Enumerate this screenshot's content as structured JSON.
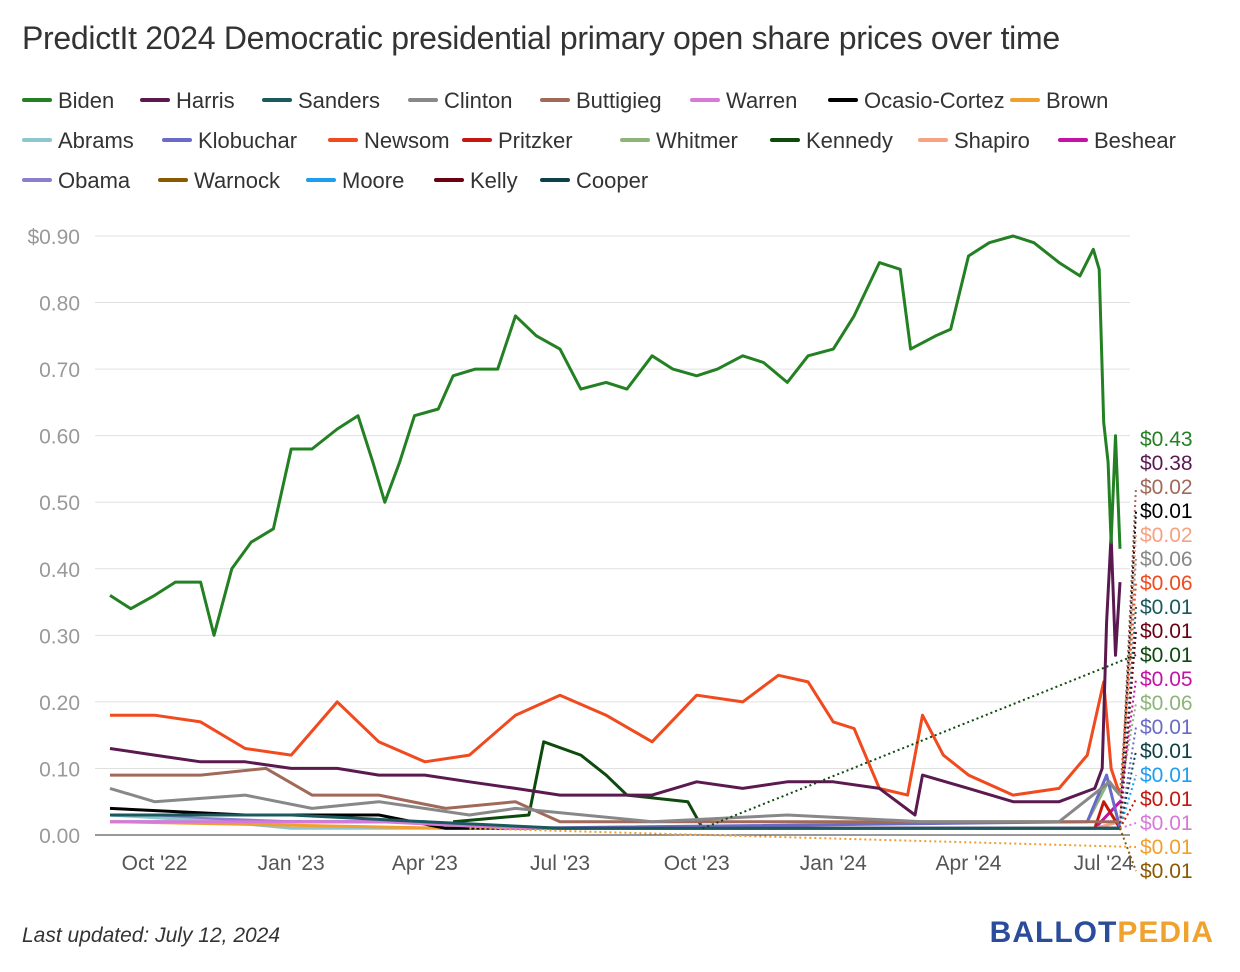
{
  "title": "PredictIt 2024 Democratic presidential primary open share prices over time",
  "footer": "Last updated: July 12, 2024",
  "logo": {
    "part1": "BALLOT",
    "part2": "PEDIA",
    "color1": "#2b4c9b",
    "color2": "#f0a22e"
  },
  "chart_data": {
    "type": "line",
    "title": "PredictIt 2024 Democratic presidential primary open share prices over time",
    "xlabel": "",
    "ylabel": "",
    "ylim": [
      0,
      0.9
    ],
    "yticks": [
      "$0.90",
      "0.80",
      "0.70",
      "0.60",
      "0.50",
      "0.40",
      "0.30",
      "0.20",
      "0.10",
      "0.00"
    ],
    "ytick_values": [
      0.9,
      0.8,
      0.7,
      0.6,
      0.5,
      0.4,
      0.3,
      0.2,
      0.1,
      0
    ],
    "xticks": [
      "Oct '22",
      "Jan '23",
      "Apr '23",
      "Jul '23",
      "Oct '23",
      "Jan '24",
      "Apr '24",
      "Jul '24"
    ],
    "xtick_dates": [
      "2022-10-01",
      "2023-01-01",
      "2023-04-01",
      "2023-07-01",
      "2023-10-01",
      "2024-01-01",
      "2024-04-01",
      "2024-07-01"
    ],
    "xlim": [
      "2022-09-01",
      "2024-07-12"
    ],
    "grid": true,
    "legend_position": "top",
    "series": [
      {
        "name": "Biden",
        "color": "#238023",
        "end_label": "$0.43",
        "points": [
          [
            "2022-09-01",
            0.36
          ],
          [
            "2022-09-15",
            0.34
          ],
          [
            "2022-10-01",
            0.36
          ],
          [
            "2022-10-15",
            0.38
          ],
          [
            "2022-11-01",
            0.38
          ],
          [
            "2022-11-10",
            0.3
          ],
          [
            "2022-11-22",
            0.4
          ],
          [
            "2022-12-05",
            0.44
          ],
          [
            "2022-12-20",
            0.46
          ],
          [
            "2023-01-01",
            0.58
          ],
          [
            "2023-01-15",
            0.58
          ],
          [
            "2023-02-01",
            0.61
          ],
          [
            "2023-02-15",
            0.63
          ],
          [
            "2023-02-25",
            0.56
          ],
          [
            "2023-03-05",
            0.5
          ],
          [
            "2023-03-15",
            0.56
          ],
          [
            "2023-03-25",
            0.63
          ],
          [
            "2023-04-10",
            0.64
          ],
          [
            "2023-04-20",
            0.69
          ],
          [
            "2023-05-05",
            0.7
          ],
          [
            "2023-05-20",
            0.7
          ],
          [
            "2023-06-01",
            0.78
          ],
          [
            "2023-06-15",
            0.75
          ],
          [
            "2023-07-01",
            0.73
          ],
          [
            "2023-07-15",
            0.67
          ],
          [
            "2023-08-01",
            0.68
          ],
          [
            "2023-08-15",
            0.67
          ],
          [
            "2023-09-01",
            0.72
          ],
          [
            "2023-09-15",
            0.7
          ],
          [
            "2023-10-01",
            0.69
          ],
          [
            "2023-10-15",
            0.7
          ],
          [
            "2023-11-01",
            0.72
          ],
          [
            "2023-11-15",
            0.71
          ],
          [
            "2023-12-01",
            0.68
          ],
          [
            "2023-12-15",
            0.72
          ],
          [
            "2024-01-01",
            0.73
          ],
          [
            "2024-01-15",
            0.78
          ],
          [
            "2024-02-01",
            0.86
          ],
          [
            "2024-02-15",
            0.85
          ],
          [
            "2024-02-22",
            0.73
          ],
          [
            "2024-03-10",
            0.75
          ],
          [
            "2024-03-20",
            0.76
          ],
          [
            "2024-04-01",
            0.87
          ],
          [
            "2024-04-15",
            0.89
          ],
          [
            "2024-05-01",
            0.9
          ],
          [
            "2024-05-15",
            0.89
          ],
          [
            "2024-06-01",
            0.86
          ],
          [
            "2024-06-15",
            0.84
          ],
          [
            "2024-06-24",
            0.88
          ],
          [
            "2024-06-28",
            0.85
          ],
          [
            "2024-07-01",
            0.62
          ],
          [
            "2024-07-04",
            0.56
          ],
          [
            "2024-07-06",
            0.44
          ],
          [
            "2024-07-09",
            0.6
          ],
          [
            "2024-07-12",
            0.43
          ]
        ]
      },
      {
        "name": "Harris",
        "color": "#5b1a4f",
        "end_label": "$0.38",
        "points": [
          [
            "2022-09-01",
            0.13
          ],
          [
            "2022-10-01",
            0.12
          ],
          [
            "2022-11-01",
            0.11
          ],
          [
            "2022-12-01",
            0.11
          ],
          [
            "2023-01-01",
            0.1
          ],
          [
            "2023-02-01",
            0.1
          ],
          [
            "2023-03-01",
            0.09
          ],
          [
            "2023-04-01",
            0.09
          ],
          [
            "2023-05-01",
            0.08
          ],
          [
            "2023-06-01",
            0.07
          ],
          [
            "2023-07-01",
            0.06
          ],
          [
            "2023-08-01",
            0.06
          ],
          [
            "2023-09-01",
            0.06
          ],
          [
            "2023-10-01",
            0.08
          ],
          [
            "2023-11-01",
            0.07
          ],
          [
            "2023-12-01",
            0.08
          ],
          [
            "2024-01-01",
            0.08
          ],
          [
            "2024-02-01",
            0.07
          ],
          [
            "2024-02-25",
            0.03
          ],
          [
            "2024-03-01",
            0.09
          ],
          [
            "2024-04-01",
            0.07
          ],
          [
            "2024-05-01",
            0.05
          ],
          [
            "2024-06-01",
            0.05
          ],
          [
            "2024-06-25",
            0.07
          ],
          [
            "2024-06-30",
            0.1
          ],
          [
            "2024-07-03",
            0.32
          ],
          [
            "2024-07-06",
            0.45
          ],
          [
            "2024-07-09",
            0.27
          ],
          [
            "2024-07-12",
            0.38
          ]
        ]
      },
      {
        "name": "Sanders",
        "color": "#1a5a5e",
        "end_label": "$0.01",
        "points": [
          [
            "2022-09-01",
            0.03
          ],
          [
            "2023-01-01",
            0.03
          ],
          [
            "2023-04-01",
            0.02
          ],
          [
            "2023-07-01",
            0.01
          ],
          [
            "2024-07-12",
            0.01
          ]
        ]
      },
      {
        "name": "Clinton",
        "color": "#888888",
        "end_label": "$0.06",
        "points": [
          [
            "2022-09-01",
            0.07
          ],
          [
            "2022-10-01",
            0.05
          ],
          [
            "2022-12-01",
            0.06
          ],
          [
            "2023-01-15",
            0.04
          ],
          [
            "2023-03-01",
            0.05
          ],
          [
            "2023-05-01",
            0.03
          ],
          [
            "2023-06-01",
            0.04
          ],
          [
            "2023-09-01",
            0.02
          ],
          [
            "2023-12-01",
            0.03
          ],
          [
            "2024-03-01",
            0.02
          ],
          [
            "2024-06-01",
            0.02
          ],
          [
            "2024-07-05",
            0.08
          ],
          [
            "2024-07-12",
            0.06
          ]
        ]
      },
      {
        "name": "Buttigieg",
        "color": "#a0695a",
        "end_label": "$0.02",
        "points": [
          [
            "2022-09-01",
            0.09
          ],
          [
            "2022-11-01",
            0.09
          ],
          [
            "2022-12-15",
            0.1
          ],
          [
            "2023-01-15",
            0.06
          ],
          [
            "2023-03-01",
            0.06
          ],
          [
            "2023-04-15",
            0.04
          ],
          [
            "2023-06-01",
            0.05
          ],
          [
            "2023-07-01",
            0.02
          ],
          [
            "2024-07-12",
            0.02
          ]
        ]
      },
      {
        "name": "Warren",
        "color": "#d77ad7",
        "end_label": "$0.01",
        "points": [
          [
            "2022-09-01",
            0.02
          ],
          [
            "2023-03-01",
            0.02
          ],
          [
            "2023-06-01",
            0.01
          ],
          [
            "2024-07-12",
            0.01
          ]
        ]
      },
      {
        "name": "Ocasio-Cortez",
        "color": "#000000",
        "end_label": "$0.01",
        "points": [
          [
            "2022-09-01",
            0.04
          ],
          [
            "2022-12-01",
            0.03
          ],
          [
            "2023-03-01",
            0.03
          ],
          [
            "2023-04-15",
            0.01
          ],
          [
            "2024-07-12",
            0.01
          ]
        ]
      },
      {
        "name": "Brown",
        "color": "#f0a030",
        "end_label": "$0.01",
        "points": [
          [
            "2022-09-01",
            0.02
          ],
          [
            "2023-04-15",
            0.01
          ],
          [
            "2023-05-01",
            0.01
          ]
        ]
      },
      {
        "name": "Abrams",
        "color": "#8ec6d0",
        "end_label": "",
        "points": [
          [
            "2022-09-01",
            0.03
          ],
          [
            "2022-11-15",
            0.02
          ],
          [
            "2023-01-01",
            0.01
          ],
          [
            "2023-05-01",
            0.01
          ]
        ]
      },
      {
        "name": "Klobuchar",
        "color": "#6a6ac8",
        "end_label": "$0.01",
        "points": [
          [
            "2022-09-01",
            0.02
          ],
          [
            "2023-04-01",
            0.02
          ],
          [
            "2023-06-01",
            0.01
          ],
          [
            "2024-06-20",
            0.02
          ],
          [
            "2024-07-03",
            0.09
          ],
          [
            "2024-07-12",
            0.01
          ]
        ]
      },
      {
        "name": "Newsom",
        "color": "#f04a1e",
        "end_label": "$0.06",
        "points": [
          [
            "2022-09-01",
            0.18
          ],
          [
            "2022-10-01",
            0.18
          ],
          [
            "2022-11-01",
            0.17
          ],
          [
            "2022-12-01",
            0.13
          ],
          [
            "2023-01-01",
            0.12
          ],
          [
            "2023-02-01",
            0.2
          ],
          [
            "2023-03-01",
            0.14
          ],
          [
            "2023-04-01",
            0.11
          ],
          [
            "2023-05-01",
            0.12
          ],
          [
            "2023-06-01",
            0.18
          ],
          [
            "2023-07-01",
            0.21
          ],
          [
            "2023-08-01",
            0.18
          ],
          [
            "2023-09-01",
            0.14
          ],
          [
            "2023-10-01",
            0.21
          ],
          [
            "2023-11-01",
            0.2
          ],
          [
            "2023-11-25",
            0.24
          ],
          [
            "2023-12-15",
            0.23
          ],
          [
            "2024-01-01",
            0.17
          ],
          [
            "2024-01-15",
            0.16
          ],
          [
            "2024-02-01",
            0.07
          ],
          [
            "2024-02-20",
            0.06
          ],
          [
            "2024-03-01",
            0.18
          ],
          [
            "2024-03-15",
            0.12
          ],
          [
            "2024-04-01",
            0.09
          ],
          [
            "2024-05-01",
            0.06
          ],
          [
            "2024-06-01",
            0.07
          ],
          [
            "2024-06-20",
            0.12
          ],
          [
            "2024-07-01",
            0.23
          ],
          [
            "2024-07-06",
            0.1
          ],
          [
            "2024-07-12",
            0.06
          ]
        ]
      },
      {
        "name": "Pritzker",
        "color": "#c4180e",
        "end_label": "$0.01",
        "points": [
          [
            "2023-06-01",
            0.01
          ],
          [
            "2024-06-25",
            0.01
          ],
          [
            "2024-07-01",
            0.05
          ],
          [
            "2024-07-12",
            0.01
          ]
        ]
      },
      {
        "name": "Whitmer",
        "color": "#8db57a",
        "end_label": "$0.06",
        "points": [
          [
            "2024-06-20",
            0.02
          ],
          [
            "2024-07-04",
            0.08
          ],
          [
            "2024-07-12",
            0.06
          ]
        ]
      },
      {
        "name": "Kennedy",
        "color": "#0e4a0e",
        "end_label": "$0.01",
        "points": [
          [
            "2023-04-20",
            0.02
          ],
          [
            "2023-06-10",
            0.03
          ],
          [
            "2023-06-20",
            0.14
          ],
          [
            "2023-07-15",
            0.12
          ],
          [
            "2023-08-01",
            0.09
          ],
          [
            "2023-08-15",
            0.06
          ],
          [
            "2023-09-25",
            0.05
          ],
          [
            "2023-10-05",
            0.01
          ]
        ]
      },
      {
        "name": "Shapiro",
        "color": "#f7a283",
        "end_label": "$0.02",
        "points": [
          [
            "2024-06-25",
            0.01
          ],
          [
            "2024-07-12",
            0.02
          ]
        ]
      },
      {
        "name": "Beshear",
        "color": "#c412a8",
        "end_label": "$0.05",
        "points": [
          [
            "2024-06-25",
            0.01
          ],
          [
            "2024-07-12",
            0.05
          ]
        ]
      },
      {
        "name": "Obama",
        "color": "#8a7fcc",
        "end_label": "",
        "points": [
          [
            "2022-09-01",
            0.03
          ],
          [
            "2023-01-01",
            0.02
          ],
          [
            "2023-04-01",
            0.02
          ]
        ]
      },
      {
        "name": "Warnock",
        "color": "#8a5a00",
        "end_label": "$0.01",
        "points": [
          [
            "2024-07-01",
            0.01
          ],
          [
            "2024-07-12",
            0.01
          ]
        ]
      },
      {
        "name": "Moore",
        "color": "#1e9ef0",
        "end_label": "$0.01",
        "points": [
          [
            "2024-07-01",
            0.01
          ],
          [
            "2024-07-12",
            0.01
          ]
        ]
      },
      {
        "name": "Kelly",
        "color": "#6b0010",
        "end_label": "$0.01",
        "points": [
          [
            "2024-07-01",
            0.01
          ],
          [
            "2024-07-12",
            0.01
          ]
        ]
      },
      {
        "name": "Cooper",
        "color": "#0d4048",
        "end_label": "$0.01",
        "points": [
          [
            "2024-07-01",
            0.01
          ],
          [
            "2024-07-12",
            0.01
          ]
        ]
      }
    ]
  }
}
